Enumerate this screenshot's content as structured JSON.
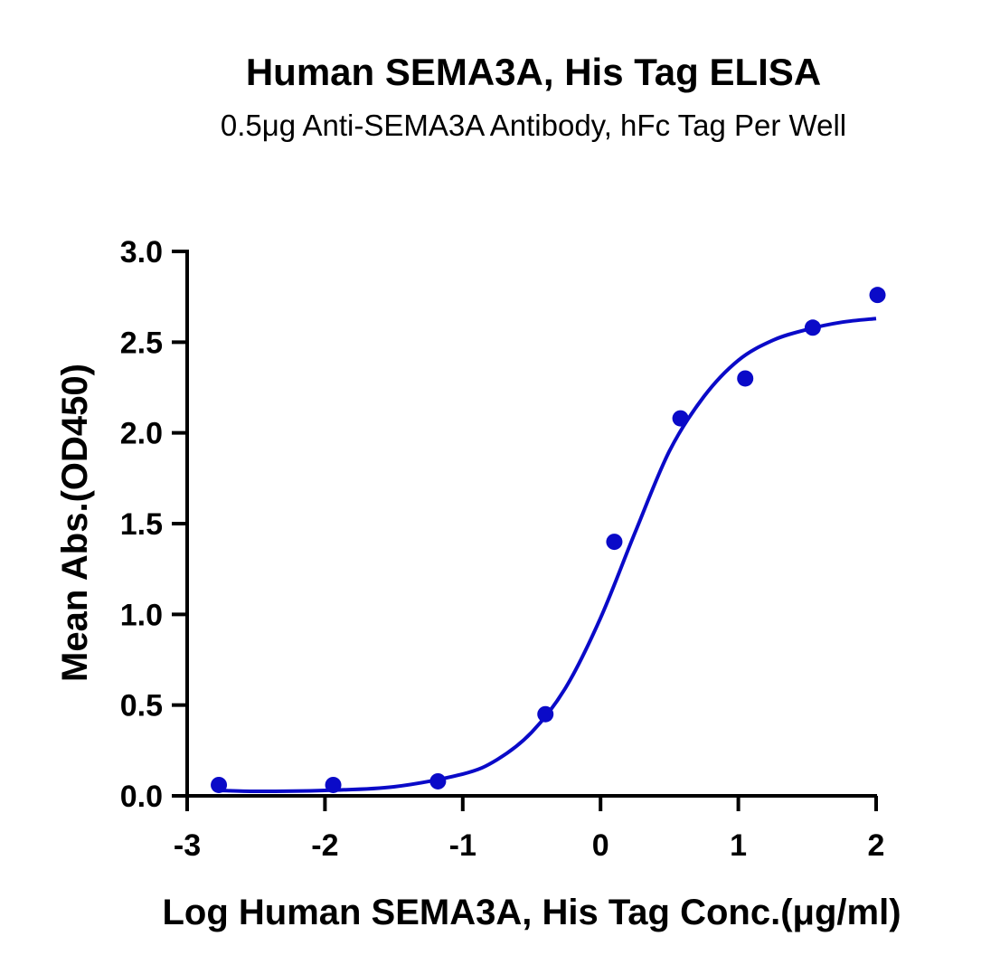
{
  "chart_data": {
    "type": "scatter",
    "title": "Human SEMA3A, His Tag ELISA",
    "subtitle": "0.5μg Anti-SEMA3A Antibody, hFc Tag Per Well",
    "xlabel": "Log Human SEMA3A, His Tag Conc.(μg/ml)",
    "ylabel": "Mean Abs.(OD450)",
    "xlim": [
      -3,
      2
    ],
    "ylim": [
      0,
      3
    ],
    "x_ticks": [
      -3,
      -2,
      -1,
      0,
      1,
      2
    ],
    "x_tick_labels": [
      "-3",
      "-2",
      "-1",
      "0",
      "1",
      "2"
    ],
    "y_ticks": [
      0,
      0.5,
      1,
      1.5,
      2,
      2.5,
      3
    ],
    "y_tick_labels": [
      "0.0",
      "0.5",
      "1.0",
      "1.5",
      "2.0",
      "2.5",
      "3.0"
    ],
    "grid": false,
    "series": [
      {
        "points": [
          {
            "x": -2.77,
            "y": 0.06
          },
          {
            "x": -1.94,
            "y": 0.06
          },
          {
            "x": -1.18,
            "y": 0.08
          },
          {
            "x": -0.4,
            "y": 0.45
          },
          {
            "x": 0.1,
            "y": 1.4
          },
          {
            "x": 0.58,
            "y": 2.08
          },
          {
            "x": 1.05,
            "y": 2.3
          },
          {
            "x": 1.54,
            "y": 2.58
          },
          {
            "x": 2.01,
            "y": 2.76
          }
        ],
        "fit_curve": [
          {
            "x": -2.77,
            "y": 0.03
          },
          {
            "x": -2.5,
            "y": 0.025
          },
          {
            "x": -2.0,
            "y": 0.03
          },
          {
            "x": -1.5,
            "y": 0.05
          },
          {
            "x": -1.0,
            "y": 0.12
          },
          {
            "x": -0.75,
            "y": 0.2
          },
          {
            "x": -0.5,
            "y": 0.35
          },
          {
            "x": -0.25,
            "y": 0.6
          },
          {
            "x": 0.0,
            "y": 0.98
          },
          {
            "x": 0.25,
            "y": 1.45
          },
          {
            "x": 0.5,
            "y": 1.9
          },
          {
            "x": 0.75,
            "y": 2.2
          },
          {
            "x": 1.0,
            "y": 2.4
          },
          {
            "x": 1.25,
            "y": 2.51
          },
          {
            "x": 1.5,
            "y": 2.57
          },
          {
            "x": 1.75,
            "y": 2.61
          },
          {
            "x": 2.0,
            "y": 2.63
          }
        ]
      }
    ],
    "colors": {
      "series": "#0a0ac8",
      "axis": "#000000"
    }
  }
}
